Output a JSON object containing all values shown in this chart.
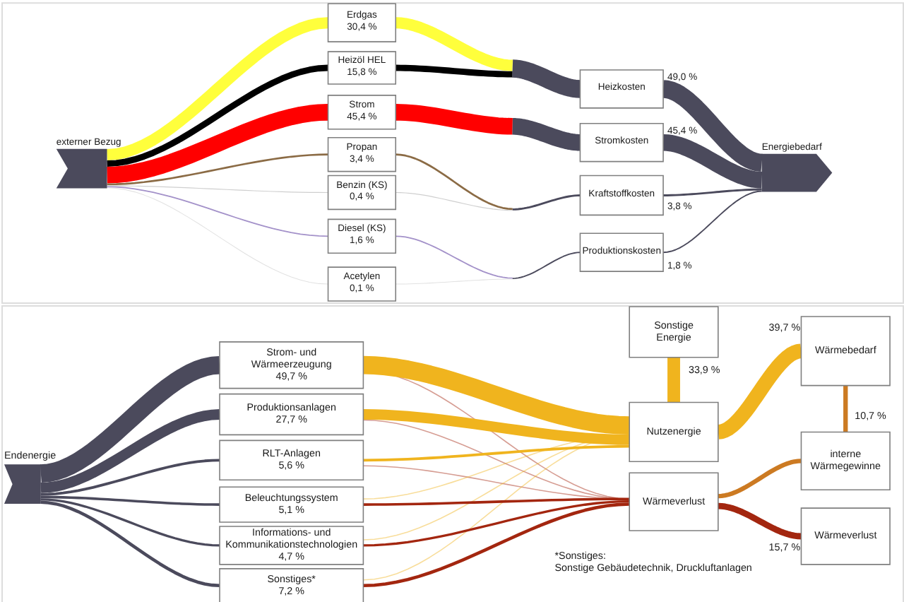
{
  "chart_data": [
    {
      "type": "other",
      "categories": [
        "externer Bezug",
        "Erdgas",
        "Heizöl HEL",
        "Strom",
        "Propan",
        "Benzin (KS)",
        "Diesel (KS)",
        "Acetylen",
        "Heizkosten",
        "Stromkosten",
        "Kraftstoffkosten",
        "Produktionskosten",
        "Energiebedarf"
      ],
      "values": [
        null,
        30.4,
        15.8,
        45.4,
        3.4,
        0.4,
        1.6,
        0.1,
        49.0,
        45.4,
        3.8,
        1.8,
        null
      ],
      "value_labels": [
        null,
        "30,4 %",
        "15,8 %",
        "45,4 %",
        "3,4 %",
        "0,4 %",
        "1,6 %",
        "0,1 %",
        "49,0 %",
        "45,4 %",
        "3,8 %",
        "1,8 %",
        null
      ]
    },
    {
      "type": "other",
      "categories": [
        "Endenergie",
        "Strom- und\nWärmeerzeugung",
        "Produktionsanlagen",
        "RLT-Anlagen",
        "Beleuchtungssystem",
        "Informations- und\nKommunikationstechnologien",
        "Sonstiges*",
        "Nutzenergie",
        "Wärmeverlust",
        "Sonstige\nEnergie",
        "Wärmebedarf",
        "interne\nWärmegewinne",
        "Wärmeverlust"
      ],
      "values": [
        null,
        49.7,
        27.7,
        5.6,
        5.1,
        4.7,
        7.2,
        null,
        null,
        33.9,
        39.7,
        10.7,
        15.7
      ],
      "value_labels": [
        null,
        "49,7 %",
        "27,7 %",
        "5,6 %",
        "5,1 %",
        "4,7 %",
        "7,2 %",
        null,
        null,
        "33,9 %",
        "39,7 %",
        "10,7 %",
        "15,7 %"
      ],
      "annotations": [
        "*Sonstiges:\nSonstige Gebäudetechnik, Druckluftanlagen"
      ]
    }
  ]
}
